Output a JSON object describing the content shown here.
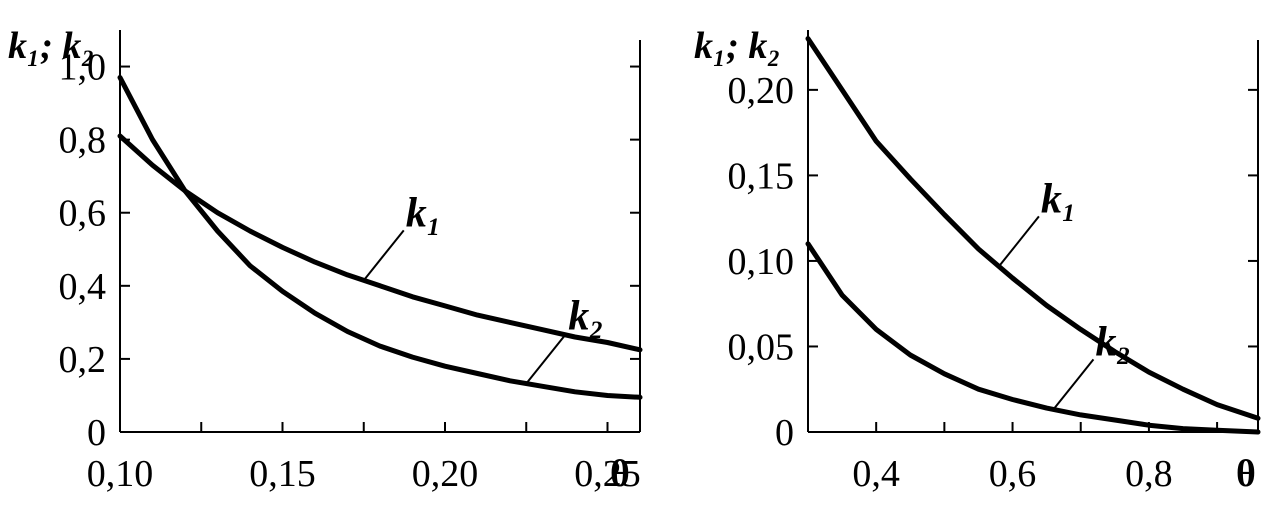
{
  "chart_data": [
    {
      "type": "line",
      "xlabel": "θ",
      "ylabel": "k₁; k₂",
      "xlim": [
        0.1,
        0.26
      ],
      "ylim": [
        0,
        1.1
      ],
      "xticks": [
        0.1,
        0.15,
        0.2,
        0.25
      ],
      "xtick_labels": [
        "0,10",
        "0,15",
        "0,20",
        "0,25"
      ],
      "yticks": [
        0,
        0.2,
        0.4,
        0.6,
        0.8,
        1.0
      ],
      "ytick_labels": [
        "0",
        "0,2",
        "0,4",
        "0,6",
        "0,8",
        "1,0"
      ],
      "series": [
        {
          "name": "k₁",
          "x": [
            0.1,
            0.11,
            0.12,
            0.13,
            0.14,
            0.15,
            0.16,
            0.17,
            0.18,
            0.19,
            0.2,
            0.21,
            0.22,
            0.23,
            0.24,
            0.25,
            0.26
          ],
          "y": [
            0.81,
            0.73,
            0.66,
            0.6,
            0.55,
            0.505,
            0.465,
            0.43,
            0.4,
            0.37,
            0.345,
            0.32,
            0.3,
            0.28,
            0.26,
            0.245,
            0.225
          ]
        },
        {
          "name": "k₂",
          "x": [
            0.1,
            0.11,
            0.12,
            0.13,
            0.14,
            0.15,
            0.16,
            0.17,
            0.18,
            0.19,
            0.2,
            0.21,
            0.22,
            0.23,
            0.24,
            0.25,
            0.26
          ],
          "y": [
            0.97,
            0.8,
            0.66,
            0.55,
            0.455,
            0.385,
            0.325,
            0.275,
            0.235,
            0.205,
            0.18,
            0.16,
            0.14,
            0.125,
            0.11,
            0.1,
            0.095
          ]
        }
      ],
      "annotations": [
        {
          "text": "k₁",
          "series": "k₁"
        },
        {
          "text": "k₂",
          "series": "k₂"
        }
      ]
    },
    {
      "type": "line",
      "xlabel": "θ",
      "ylabel": "k₁; k₂",
      "xlim": [
        0.3,
        0.96
      ],
      "ylim": [
        0,
        0.235
      ],
      "xticks": [
        0.4,
        0.6,
        0.8
      ],
      "xtick_labels": [
        "0,4",
        "0,6",
        "0,8"
      ],
      "yticks": [
        0,
        0.05,
        0.1,
        0.15,
        0.2
      ],
      "ytick_labels": [
        "0",
        "0,05",
        "0,10",
        "0,15",
        "0,20"
      ],
      "series": [
        {
          "name": "k₁",
          "x": [
            0.3,
            0.35,
            0.4,
            0.45,
            0.5,
            0.55,
            0.6,
            0.65,
            0.7,
            0.75,
            0.8,
            0.85,
            0.9,
            0.96
          ],
          "y": [
            0.23,
            0.2,
            0.17,
            0.148,
            0.127,
            0.107,
            0.09,
            0.074,
            0.06,
            0.047,
            0.035,
            0.025,
            0.016,
            0.008
          ]
        },
        {
          "name": "k₂",
          "x": [
            0.3,
            0.35,
            0.4,
            0.45,
            0.5,
            0.55,
            0.6,
            0.65,
            0.7,
            0.75,
            0.8,
            0.85,
            0.9,
            0.96
          ],
          "y": [
            0.11,
            0.08,
            0.06,
            0.045,
            0.034,
            0.025,
            0.019,
            0.014,
            0.01,
            0.007,
            0.004,
            0.002,
            0.001,
            0.0
          ]
        }
      ],
      "annotations": [
        {
          "text": "k₁",
          "series": "k₁"
        },
        {
          "text": "k₂",
          "series": "k₂"
        }
      ]
    }
  ]
}
